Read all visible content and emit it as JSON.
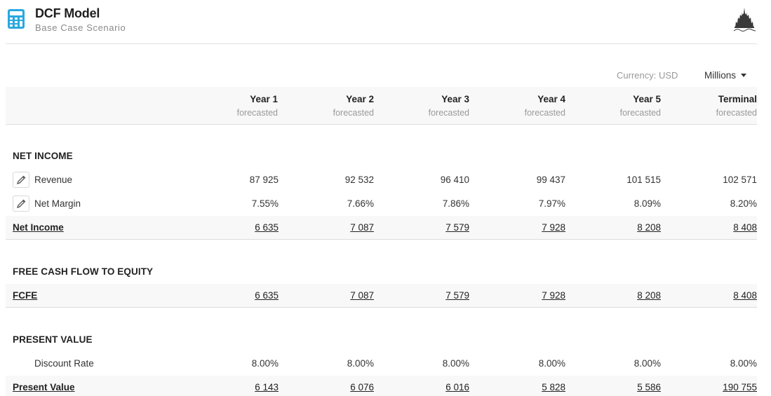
{
  "header": {
    "title": "DCF Model",
    "subtitle": "Base Case Scenario"
  },
  "toolbar": {
    "currency": "Currency: USD",
    "units": "Millions"
  },
  "columns": [
    {
      "title": "Year 1",
      "sub": "forecasted"
    },
    {
      "title": "Year 2",
      "sub": "forecasted"
    },
    {
      "title": "Year 3",
      "sub": "forecasted"
    },
    {
      "title": "Year 4",
      "sub": "forecasted"
    },
    {
      "title": "Year 5",
      "sub": "forecasted"
    },
    {
      "title": "Terminal",
      "sub": "forecasted"
    }
  ],
  "sections": {
    "net_income": {
      "title": "NET INCOME",
      "revenue": {
        "label": "Revenue",
        "values": [
          "87 925",
          "92 532",
          "96 410",
          "99 437",
          "101 515",
          "102 571"
        ]
      },
      "net_margin": {
        "label": "Net Margin",
        "values": [
          "7.55%",
          "7.66%",
          "7.86%",
          "7.97%",
          "8.09%",
          "8.20%"
        ]
      },
      "total": {
        "label": "Net Income",
        "values": [
          "6 635",
          "7 087",
          "7 579",
          "7 928",
          "8 208",
          "8 408"
        ]
      }
    },
    "fcfe": {
      "title": "FREE CASH FLOW TO EQUITY",
      "total": {
        "label": "FCFE",
        "values": [
          "6 635",
          "7 087",
          "7 579",
          "7 928",
          "8 208",
          "8 408"
        ]
      }
    },
    "present_value": {
      "title": "PRESENT VALUE",
      "discount_rate": {
        "label": "Discount Rate",
        "values": [
          "8.00%",
          "8.00%",
          "8.00%",
          "8.00%",
          "8.00%",
          "8.00%"
        ]
      },
      "total": {
        "label": "Present Value",
        "values": [
          "6 143",
          "6 076",
          "6 016",
          "5 828",
          "5 586",
          "190 755"
        ]
      }
    }
  },
  "icons": {
    "app": "calculator-icon",
    "logo": "castle-logo",
    "edit": "pencil-icon",
    "dropdown": "caret-down-icon"
  },
  "colors": {
    "accent": "#2aa8e0",
    "row_alt": "#f8f8f8"
  }
}
